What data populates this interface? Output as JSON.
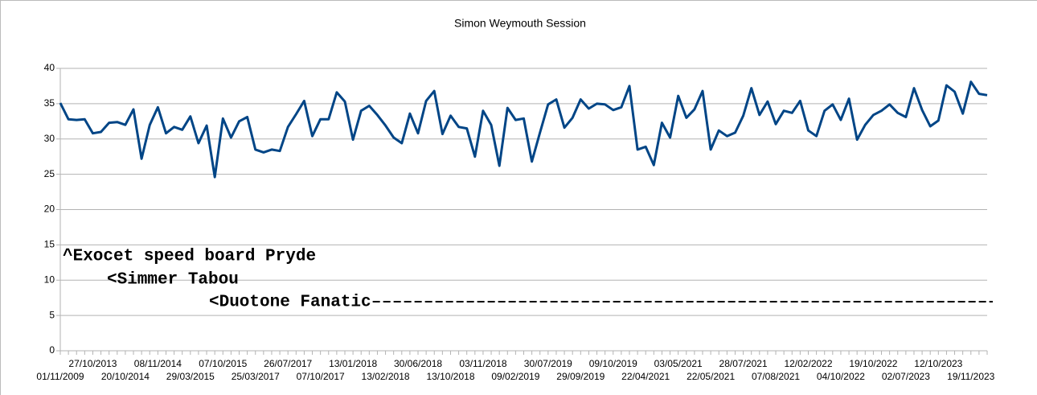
{
  "chart_data": {
    "type": "line",
    "title": "Simon Weymouth Session",
    "categories": [
      "01/11/2009",
      null,
      null,
      null,
      "27/10/2013",
      null,
      null,
      null,
      "20/10/2014",
      null,
      null,
      null,
      "08/11/2014",
      null,
      null,
      null,
      "29/03/2015",
      null,
      null,
      null,
      "07/10/2015",
      null,
      null,
      null,
      "25/03/2017",
      null,
      null,
      null,
      "26/07/2017",
      null,
      null,
      null,
      "07/10/2017",
      null,
      null,
      null,
      "13/01/2018",
      null,
      null,
      null,
      "13/02/2018",
      null,
      null,
      null,
      "30/06/2018",
      null,
      null,
      null,
      "13/10/2018",
      null,
      null,
      null,
      "03/11/2018",
      null,
      null,
      null,
      "09/02/2019",
      null,
      null,
      null,
      "30/07/2019",
      null,
      null,
      null,
      "29/09/2019",
      null,
      null,
      null,
      "09/10/2019",
      null,
      null,
      null,
      "22/04/2021",
      null,
      null,
      null,
      "03/05/2021",
      null,
      null,
      null,
      "22/05/2021",
      null,
      null,
      null,
      "28/07/2021",
      null,
      null,
      null,
      "07/08/2021",
      null,
      null,
      null,
      "12/02/2022",
      null,
      null,
      null,
      "04/10/2022",
      null,
      null,
      null,
      "19/10/2022",
      null,
      null,
      null,
      "02/07/2023",
      null,
      null,
      null,
      "12/10/2023",
      null,
      null,
      null,
      "19/11/2023",
      null,
      null
    ],
    "values": [
      35.1,
      32.8,
      32.7,
      32.8,
      30.8,
      31.0,
      32.3,
      32.4,
      32.0,
      34.2,
      27.2,
      32.0,
      34.5,
      30.8,
      31.7,
      31.3,
      33.2,
      29.4,
      31.9,
      24.6,
      32.9,
      30.2,
      32.5,
      33.1,
      28.5,
      28.1,
      28.5,
      28.3,
      31.7,
      33.5,
      35.4,
      30.4,
      32.8,
      32.8,
      36.6,
      35.3,
      29.9,
      34.0,
      34.7,
      33.4,
      31.9,
      30.2,
      29.4,
      33.6,
      30.8,
      35.4,
      36.8,
      30.7,
      33.3,
      31.7,
      31.5,
      27.5,
      34.0,
      32.0,
      26.2,
      34.4,
      32.7,
      32.9,
      26.8,
      30.9,
      34.9,
      35.6,
      31.6,
      33.0,
      35.6,
      34.3,
      35.0,
      34.9,
      34.1,
      34.5,
      37.5,
      28.5,
      28.9,
      26.3,
      32.3,
      30.2,
      36.1,
      33.0,
      34.2,
      36.8,
      28.5,
      31.2,
      30.4,
      30.9,
      33.3,
      37.2,
      33.4,
      35.3,
      32.1,
      34.0,
      33.7,
      35.4,
      31.2,
      30.4,
      34.0,
      34.9,
      32.7,
      35.7,
      29.9,
      32.0,
      33.4,
      34.0,
      34.9,
      33.7,
      33.1,
      37.2,
      34.1,
      31.8,
      32.6,
      37.6,
      36.7,
      33.6,
      38.1,
      36.4,
      36.2
    ],
    "color": "#004586",
    "ylim": [
      0,
      40
    ],
    "yticks": [
      0,
      5,
      10,
      15,
      20,
      25,
      30,
      35,
      40
    ],
    "grid": true,
    "annotations": [
      "^Exocet speed board Pryde",
      "<Simmer Tabou",
      "<Duotone Fanatic"
    ]
  }
}
